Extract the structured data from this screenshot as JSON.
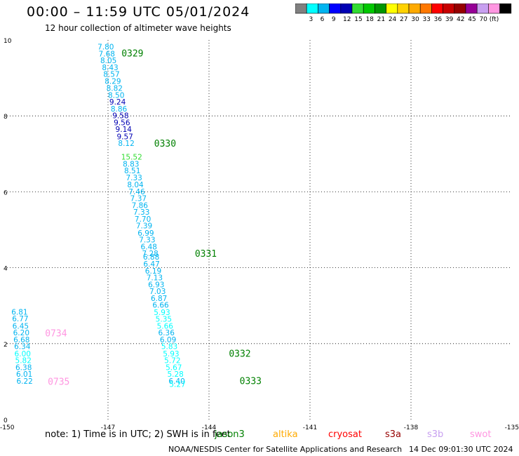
{
  "header": {
    "title": "00:00 – 11:59 UTC 05/01/2024",
    "subtitle": "12 hour collection of altimeter wave heights"
  },
  "colorbar": {
    "colors": [
      "#808080",
      "#00ffff",
      "#00b4f0",
      "#0000ff",
      "#0000b4",
      "#32dc32",
      "#00c800",
      "#009600",
      "#ffff00",
      "#ffd200",
      "#ffaa00",
      "#ff7800",
      "#ff0000",
      "#c80000",
      "#960000",
      "#960096",
      "#c8a0f0",
      "#ff96e1",
      "#000000"
    ],
    "labels": [
      "3",
      "6",
      "9",
      "12",
      "15",
      "18",
      "21",
      "24",
      "27",
      "30",
      "33",
      "36",
      "39",
      "42",
      "45",
      "70 (ft)"
    ]
  },
  "chart_data": {
    "type": "scatter",
    "xlim": [
      -150,
      -135
    ],
    "ylim": [
      0,
      10
    ],
    "x_ticks": [
      "-150",
      "-147",
      "-144",
      "-141",
      "-138",
      "-135"
    ],
    "y_ticks": [
      "0",
      "2",
      "4",
      "6",
      "8",
      "10"
    ],
    "grid": true,
    "points": [
      {
        "label": "7.80",
        "x": -147.31,
        "y": 9.82,
        "color": "#00b4f0"
      },
      {
        "label": "7.68",
        "x": -147.28,
        "y": 9.64,
        "color": "#00b4f0"
      },
      {
        "label": "8.05",
        "x": -147.23,
        "y": 9.46,
        "color": "#00b4f0"
      },
      {
        "label": "8.43",
        "x": -147.18,
        "y": 9.28,
        "color": "#00b4f0"
      },
      {
        "label": "8.57",
        "x": -147.14,
        "y": 9.1,
        "color": "#00b4f0"
      },
      {
        "label": "8.29",
        "x": -147.1,
        "y": 8.92,
        "color": "#00b4f0"
      },
      {
        "label": "8.82",
        "x": -147.05,
        "y": 8.73,
        "color": "#00b4f0"
      },
      {
        "label": "8.50",
        "x": -147.0,
        "y": 8.55,
        "color": "#00b4f0"
      },
      {
        "label": "9.24",
        "x": -146.96,
        "y": 8.37,
        "color": "#0000b4"
      },
      {
        "label": "8.86",
        "x": -146.92,
        "y": 8.19,
        "color": "#00b4f0"
      },
      {
        "label": "9.58",
        "x": -146.87,
        "y": 8.01,
        "color": "#0000b4"
      },
      {
        "label": "9.56",
        "x": -146.83,
        "y": 7.83,
        "color": "#0000b4"
      },
      {
        "label": "9.14",
        "x": -146.78,
        "y": 7.65,
        "color": "#0000b4"
      },
      {
        "label": "9.57",
        "x": -146.74,
        "y": 7.46,
        "color": "#0000b4"
      },
      {
        "label": "8.12",
        "x": -146.7,
        "y": 7.28,
        "color": "#00b4f0"
      },
      {
        "label": "15.52",
        "x": -146.61,
        "y": 6.92,
        "color": "#32dc32"
      },
      {
        "label": "8.83",
        "x": -146.56,
        "y": 6.74,
        "color": "#00b4f0"
      },
      {
        "label": "8.51",
        "x": -146.52,
        "y": 6.56,
        "color": "#00b4f0"
      },
      {
        "label": "7.33",
        "x": -146.47,
        "y": 6.38,
        "color": "#00b4f0"
      },
      {
        "label": "8.04",
        "x": -146.43,
        "y": 6.19,
        "color": "#00b4f0"
      },
      {
        "label": "7.46",
        "x": -146.39,
        "y": 6.01,
        "color": "#00b4f0"
      },
      {
        "label": "7.37",
        "x": -146.34,
        "y": 5.83,
        "color": "#00b4f0"
      },
      {
        "label": "7.86",
        "x": -146.3,
        "y": 5.65,
        "color": "#00b4f0"
      },
      {
        "label": "7.33",
        "x": -146.25,
        "y": 5.47,
        "color": "#00b4f0"
      },
      {
        "label": "7.70",
        "x": -146.21,
        "y": 5.29,
        "color": "#00b4f0"
      },
      {
        "label": "7.39",
        "x": -146.17,
        "y": 5.11,
        "color": "#00b4f0"
      },
      {
        "label": "6.99",
        "x": -146.12,
        "y": 4.92,
        "color": "#00b4f0"
      },
      {
        "label": "7.33",
        "x": -146.08,
        "y": 4.74,
        "color": "#00b4f0"
      },
      {
        "label": "6.48",
        "x": -146.03,
        "y": 4.56,
        "color": "#00b4f0"
      },
      {
        "label": "7.28",
        "x": -145.99,
        "y": 4.38,
        "color": "#00b4f0"
      },
      {
        "label": "6.88",
        "x": -145.96,
        "y": 4.29,
        "color": "#00b4f0"
      },
      {
        "label": "6.47",
        "x": -145.95,
        "y": 4.1,
        "color": "#00b4f0"
      },
      {
        "label": "6.19",
        "x": -145.9,
        "y": 3.92,
        "color": "#00b4f0"
      },
      {
        "label": "7.13",
        "x": -145.86,
        "y": 3.74,
        "color": "#00b4f0"
      },
      {
        "label": "6.93",
        "x": -145.81,
        "y": 3.56,
        "color": "#00b4f0"
      },
      {
        "label": "7.03",
        "x": -145.77,
        "y": 3.38,
        "color": "#00b4f0"
      },
      {
        "label": "6.87",
        "x": -145.73,
        "y": 3.2,
        "color": "#00b4f0"
      },
      {
        "label": "6.66",
        "x": -145.68,
        "y": 3.02,
        "color": "#00b4f0"
      },
      {
        "label": "5.93",
        "x": -145.64,
        "y": 2.83,
        "color": "#00ffff"
      },
      {
        "label": "5.35",
        "x": -145.59,
        "y": 2.65,
        "color": "#00ffff"
      },
      {
        "label": "5.66",
        "x": -145.55,
        "y": 2.47,
        "color": "#00ffff"
      },
      {
        "label": "6.36",
        "x": -145.51,
        "y": 2.29,
        "color": "#00b4f0"
      },
      {
        "label": "6.09",
        "x": -145.46,
        "y": 2.11,
        "color": "#00b4f0"
      },
      {
        "label": "5.83",
        "x": -145.42,
        "y": 1.93,
        "color": "#00ffff"
      },
      {
        "label": "5.93",
        "x": -145.37,
        "y": 1.74,
        "color": "#00ffff"
      },
      {
        "label": "5.72",
        "x": -145.33,
        "y": 1.56,
        "color": "#00ffff"
      },
      {
        "label": "5.67",
        "x": -145.29,
        "y": 1.38,
        "color": "#00ffff"
      },
      {
        "label": "5.28",
        "x": -145.24,
        "y": 1.2,
        "color": "#00ffff"
      },
      {
        "label": "6.40",
        "x": -145.2,
        "y": 1.02,
        "color": "#00b4f0"
      },
      {
        "label": "5.27",
        "x": -145.18,
        "y": 0.93,
        "color": "#00ffff"
      },
      {
        "label": "6.81",
        "x": -149.87,
        "y": 2.84,
        "color": "#00b4f0"
      },
      {
        "label": "6.77",
        "x": -149.85,
        "y": 2.66,
        "color": "#00b4f0"
      },
      {
        "label": "6.45",
        "x": -149.84,
        "y": 2.47,
        "color": "#00b4f0"
      },
      {
        "label": "6.20",
        "x": -149.82,
        "y": 2.29,
        "color": "#00b4f0"
      },
      {
        "label": "6.68",
        "x": -149.81,
        "y": 2.11,
        "color": "#00b4f0"
      },
      {
        "label": "6.34",
        "x": -149.79,
        "y": 1.93,
        "color": "#00b4f0"
      },
      {
        "label": "6.00",
        "x": -149.78,
        "y": 1.74,
        "color": "#00ffff"
      },
      {
        "label": "5.82",
        "x": -149.76,
        "y": 1.56,
        "color": "#00ffff"
      },
      {
        "label": "6.38",
        "x": -149.75,
        "y": 1.38,
        "color": "#00b4f0"
      },
      {
        "label": "6.01",
        "x": -149.73,
        "y": 1.2,
        "color": "#00b4f0"
      },
      {
        "label": "6.22",
        "x": -149.72,
        "y": 1.02,
        "color": "#00b4f0"
      }
    ],
    "pass_labels": [
      {
        "label": "0329",
        "x": -146.6,
        "y": 9.66,
        "color": "#008000"
      },
      {
        "label": "0330",
        "x": -145.63,
        "y": 7.28,
        "color": "#008000"
      },
      {
        "label": "0331",
        "x": -144.42,
        "y": 4.38,
        "color": "#008000"
      },
      {
        "label": "0332",
        "x": -143.41,
        "y": 1.75,
        "color": "#008000"
      },
      {
        "label": "0333",
        "x": -143.09,
        "y": 1.03,
        "color": "#008000"
      },
      {
        "label": "0734",
        "x": -148.87,
        "y": 2.28,
        "color": "#ff96e1"
      },
      {
        "label": "0735",
        "x": -148.79,
        "y": 1.01,
        "color": "#ff96e1"
      }
    ]
  },
  "footer": {
    "note": "note:  1) Time is in UTC; 2) SWH is in feet",
    "satellites": [
      {
        "name": "jason3",
        "color": "#008000"
      },
      {
        "name": "altika",
        "color": "#ffaa00"
      },
      {
        "name": "cryosat",
        "color": "#ff0000"
      },
      {
        "name": "s3a",
        "color": "#960000"
      },
      {
        "name": "s3b",
        "color": "#c8a0f0"
      },
      {
        "name": "swot",
        "color": "#ff96e1"
      }
    ],
    "credit": "NOAA/NESDIS Center for Satellite Applications and Research",
    "timestamp": "14 Dec 09:01:30 UTC 2024"
  }
}
